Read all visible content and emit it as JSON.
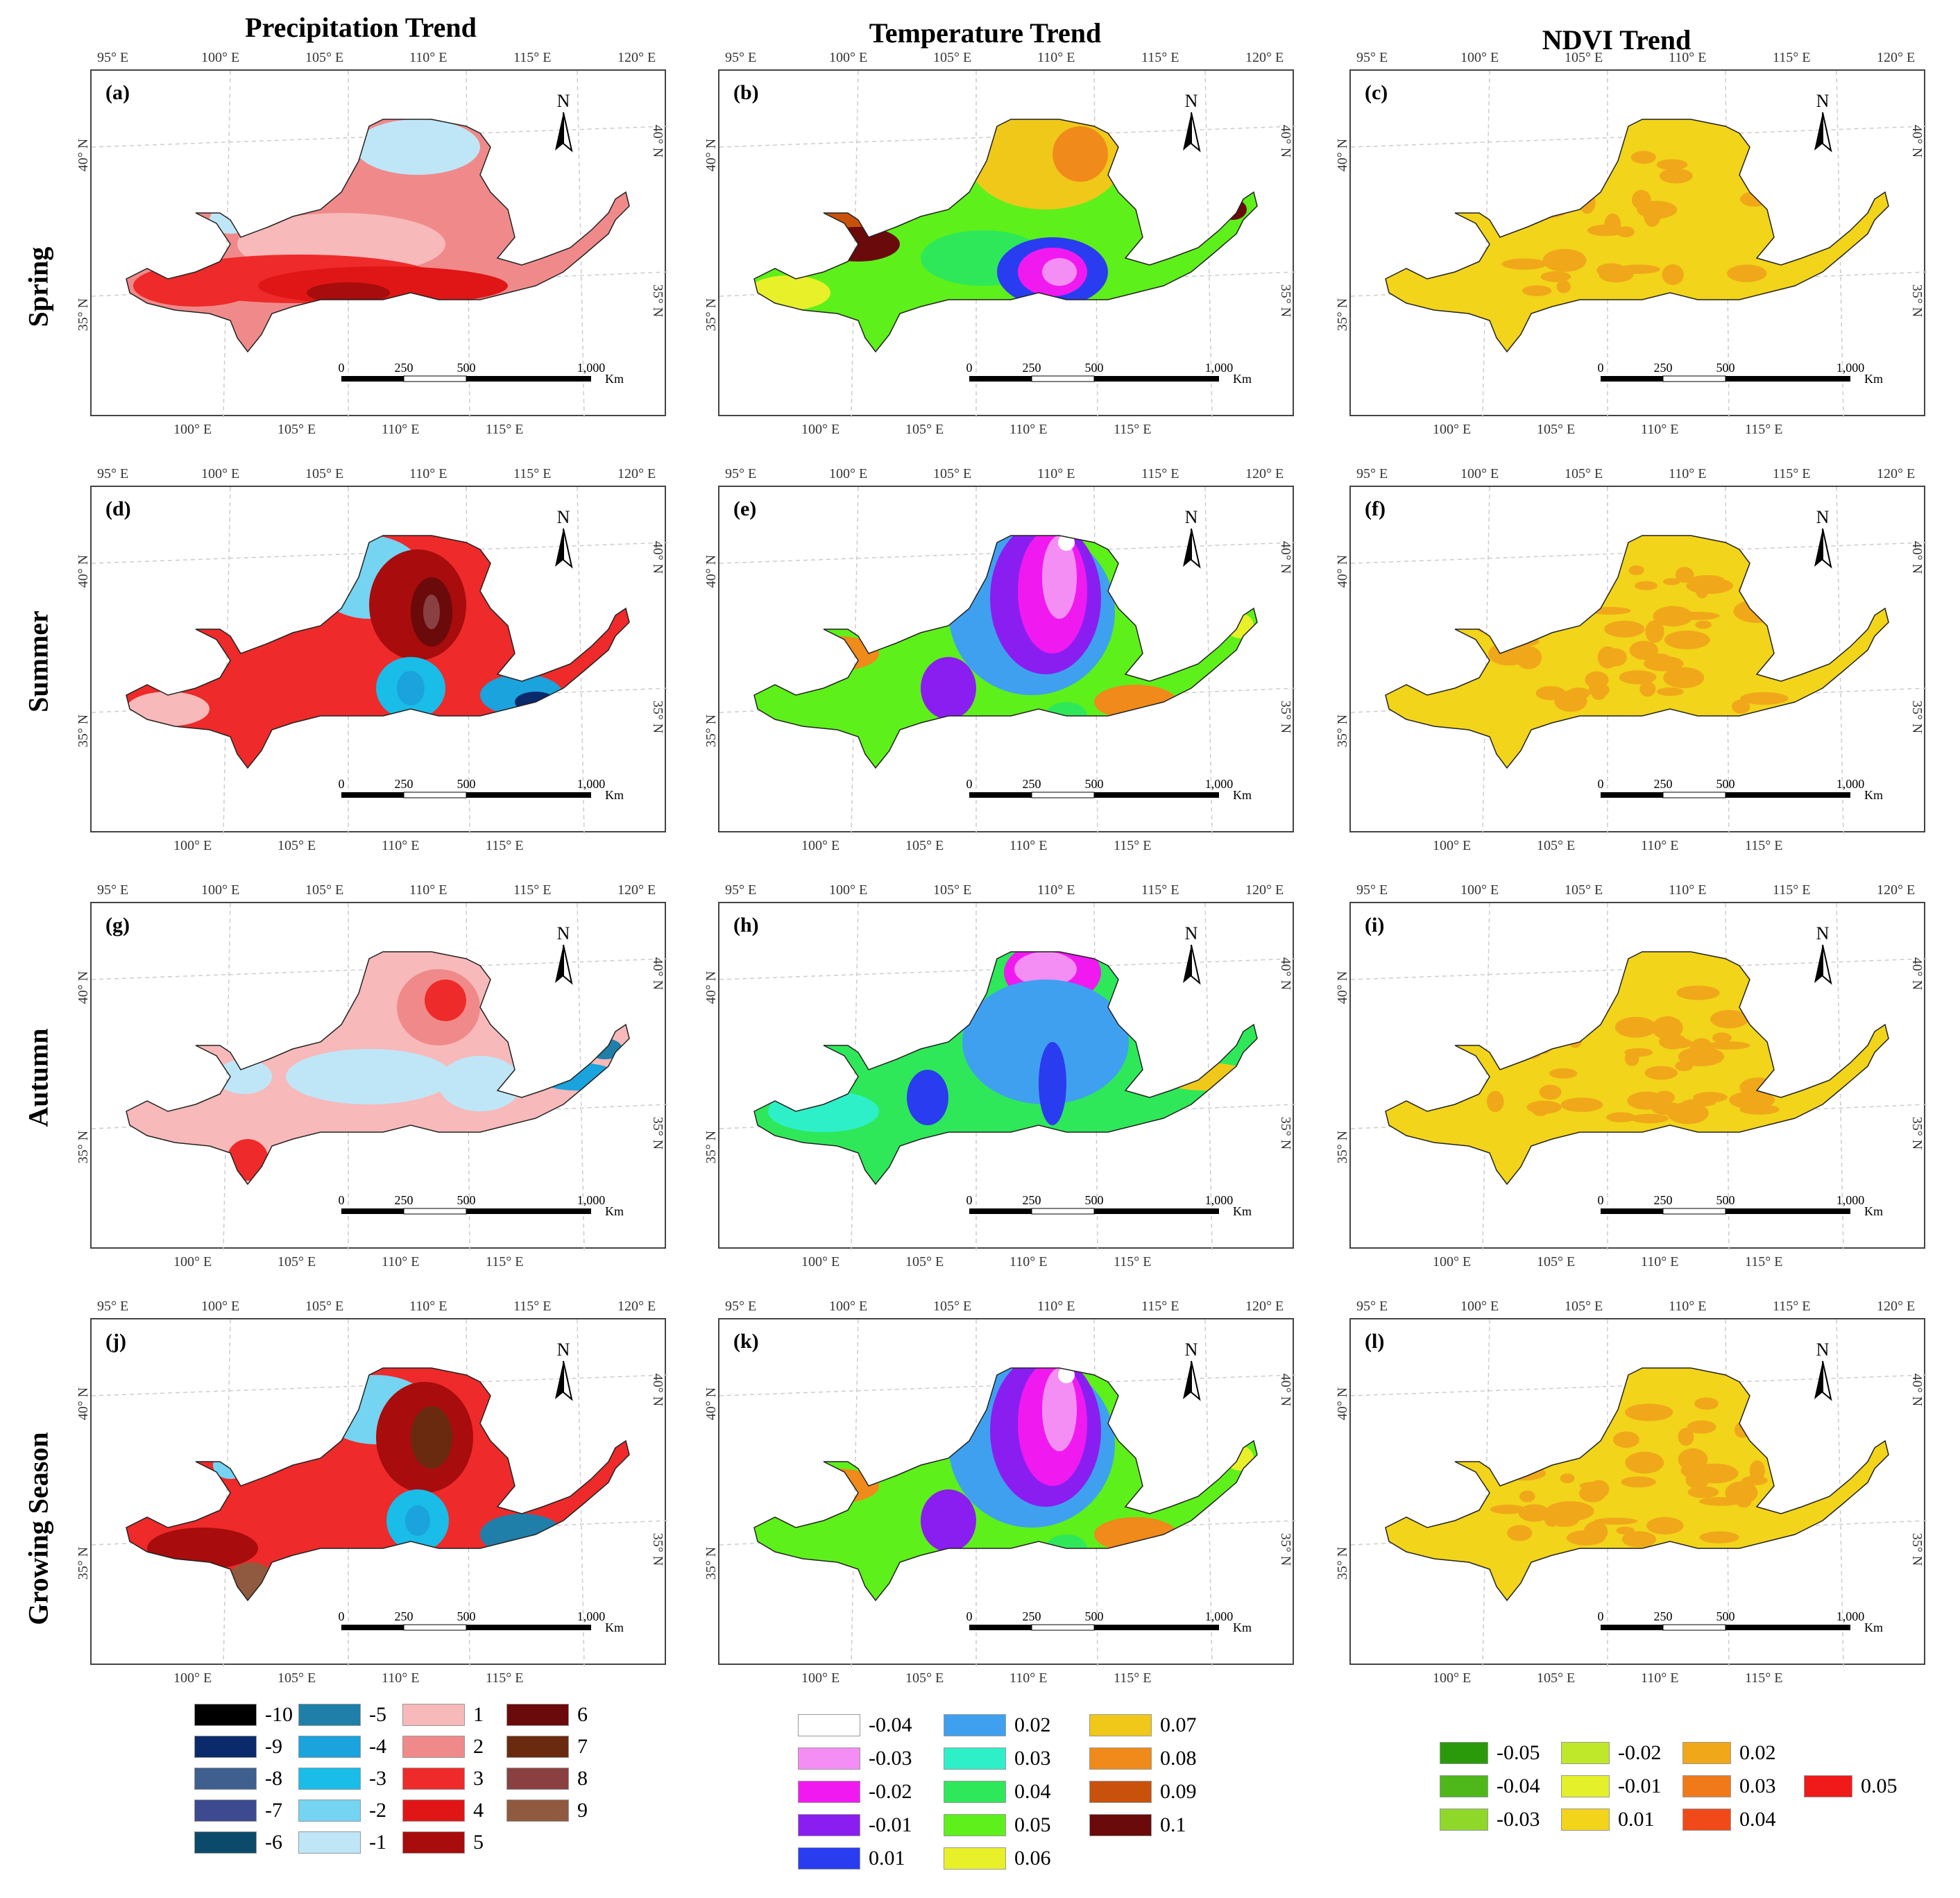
{
  "columns": [
    "Precipitation Trend",
    "Temperature Trend",
    "NDVI Trend"
  ],
  "rows": [
    "Spring",
    "Summer",
    "Autumn",
    "Growing Season"
  ],
  "panel_letters": [
    "(a)",
    "(b)",
    "(c)",
    "(d)",
    "(e)",
    "(f)",
    "(g)",
    "(h)",
    "(i)",
    "(j)",
    "(k)",
    "(l)"
  ],
  "lon_ticks_top": [
    "95° E",
    "100° E",
    "105° E",
    "110° E",
    "115° E",
    "120° E"
  ],
  "lon_ticks_bottom": [
    "100° E",
    "105° E",
    "110° E",
    "115° E"
  ],
  "lat_ticks_left": [
    "40° N",
    "35° N"
  ],
  "lat_ticks_right": [
    "40° N",
    "35° N"
  ],
  "north_label": "N",
  "scale": {
    "labels": [
      "0",
      "250",
      "500",
      "1,000"
    ],
    "unit": "Km"
  },
  "legends": {
    "precipitation": [
      {
        "label": "-10",
        "color": "#000000"
      },
      {
        "label": "-9",
        "color": "#0b2a6b"
      },
      {
        "label": "-8",
        "color": "#3f5f8f"
      },
      {
        "label": "-7",
        "color": "#3d4a8f"
      },
      {
        "label": "-6",
        "color": "#0b4a6b"
      },
      {
        "label": "-5",
        "color": "#1f7fa8"
      },
      {
        "label": "-4",
        "color": "#1aa3dc"
      },
      {
        "label": "-3",
        "color": "#19bde8"
      },
      {
        "label": "-2",
        "color": "#74d4f2"
      },
      {
        "label": "-1",
        "color": "#bfe6f7"
      },
      {
        "label": "1",
        "color": "#f7b9b9"
      },
      {
        "label": "2",
        "color": "#f08a8a"
      },
      {
        "label": "3",
        "color": "#ee2a2a"
      },
      {
        "label": "4",
        "color": "#e01616"
      },
      {
        "label": "5",
        "color": "#a80c0c"
      },
      {
        "label": "6",
        "color": "#6b0a0a"
      },
      {
        "label": "7",
        "color": "#6a2a10"
      },
      {
        "label": "8",
        "color": "#8a4040"
      },
      {
        "label": "9",
        "color": "#8f5a3f"
      }
    ],
    "temperature": [
      {
        "label": "-0.04",
        "color": "#ffffff"
      },
      {
        "label": "-0.03",
        "color": "#f48ef4"
      },
      {
        "label": "-0.02",
        "color": "#f01af0"
      },
      {
        "label": "-0.01",
        "color": "#8a1ef0"
      },
      {
        "label": "0.01",
        "color": "#2a3cf0"
      },
      {
        "label": "0.02",
        "color": "#3fa0f0"
      },
      {
        "label": "0.03",
        "color": "#2ef0c8"
      },
      {
        "label": "0.04",
        "color": "#2ee85a"
      },
      {
        "label": "0.05",
        "color": "#5ef01a"
      },
      {
        "label": "0.06",
        "color": "#e8f02a"
      },
      {
        "label": "0.07",
        "color": "#f0c81a"
      },
      {
        "label": "0.08",
        "color": "#f08a1a"
      },
      {
        "label": "0.09",
        "color": "#c8520c"
      },
      {
        "label": "0.1",
        "color": "#6a0a0a"
      }
    ],
    "ndvi": [
      {
        "label": "-0.05",
        "color": "#2a9a0a"
      },
      {
        "label": "-0.04",
        "color": "#4eb81a"
      },
      {
        "label": "-0.03",
        "color": "#8fd82a"
      },
      {
        "label": "-0.02",
        "color": "#c0e82a"
      },
      {
        "label": "-0.01",
        "color": "#e4f02a"
      },
      {
        "label": "0.01",
        "color": "#f2d41a"
      },
      {
        "label": "0.02",
        "color": "#f0a81a"
      },
      {
        "label": "0.03",
        "color": "#f07a1a"
      },
      {
        "label": "0.04",
        "color": "#f04a1a"
      },
      {
        "label": "0.05",
        "color": "#f01a1a"
      }
    ]
  }
}
